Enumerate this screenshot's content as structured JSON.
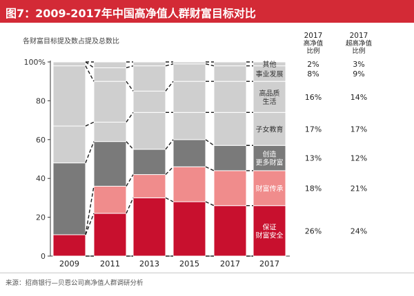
{
  "title": "图7：2009-2017年中国高净值人群财富目标对比",
  "subtitle": "各财富目标提及数占提及总数比",
  "source": "来源：招商银行—贝恩公司高净值人群调研分析",
  "columns": {
    "hnwi": {
      "year": "2017",
      "label_line1": "高净值",
      "label_line2": "比例"
    },
    "uhnwi": {
      "year": "2017",
      "label_line1": "超高净值",
      "label_line2": "比例"
    }
  },
  "colors": {
    "title_bar": "#d32a36",
    "protect_wealth": "#c8102e",
    "wealth_inheritance": "#f08c8c",
    "create_wealth": "#7a7a7a",
    "children_education": "#cfcfcf",
    "quality_of_life": "#cfcfcf",
    "career": "#cfcfcf",
    "other": "#cfcfcf"
  },
  "chart_data": {
    "type": "bar",
    "stacked": true,
    "x_ticks": [
      "2009",
      "2011",
      "2013",
      "2015",
      "2017",
      "2017"
    ],
    "y_ticks": [
      "0",
      "20",
      "40",
      "60",
      "80",
      "100%"
    ],
    "ylim": [
      0,
      100
    ],
    "bars": [
      {
        "year": "2009",
        "segments": [
          11,
          0,
          37,
          19,
          31,
          2,
          0
        ]
      },
      {
        "year": "2011",
        "segments": [
          22,
          14,
          23,
          10,
          21,
          7,
          3
        ]
      },
      {
        "year": "2013",
        "segments": [
          30,
          12,
          13,
          19,
          11,
          13,
          2
        ]
      },
      {
        "year": "2015",
        "segments": [
          28,
          18,
          14,
          14,
          16,
          9,
          1
        ]
      },
      {
        "year": "2017",
        "segments": [
          26,
          18,
          13,
          17,
          16,
          8,
          2
        ]
      }
    ],
    "labeled_bar": {
      "year": "2017",
      "segments": [
        {
          "key": "protect_wealth",
          "label": "保证\n财富安全",
          "hnwi": "26%",
          "uhnwi": "24%",
          "value": 26
        },
        {
          "key": "wealth_inheritance",
          "label": "财富传承",
          "hnwi": "18%",
          "uhnwi": "21%",
          "value": 18
        },
        {
          "key": "create_wealth",
          "label": "创造\n更多财富",
          "hnwi": "13%",
          "uhnwi": "12%",
          "value": 13
        },
        {
          "key": "children_education",
          "label": "子女教育",
          "hnwi": "17%",
          "uhnwi": "17%",
          "value": 17
        },
        {
          "key": "quality_of_life",
          "label": "高品质\n生活",
          "hnwi": "16%",
          "uhnwi": "14%",
          "value": 16
        },
        {
          "key": "career",
          "label": "事业发展",
          "hnwi": "8%",
          "uhnwi": "9%",
          "value": 8
        },
        {
          "key": "other",
          "label": "其他",
          "hnwi": "2%",
          "uhnwi": "3%",
          "value": 2
        }
      ]
    },
    "segment_order": [
      "protect_wealth",
      "wealth_inheritance",
      "create_wealth",
      "children_education",
      "quality_of_life",
      "career",
      "other"
    ],
    "grid": false,
    "connector_lines": "dashed"
  }
}
